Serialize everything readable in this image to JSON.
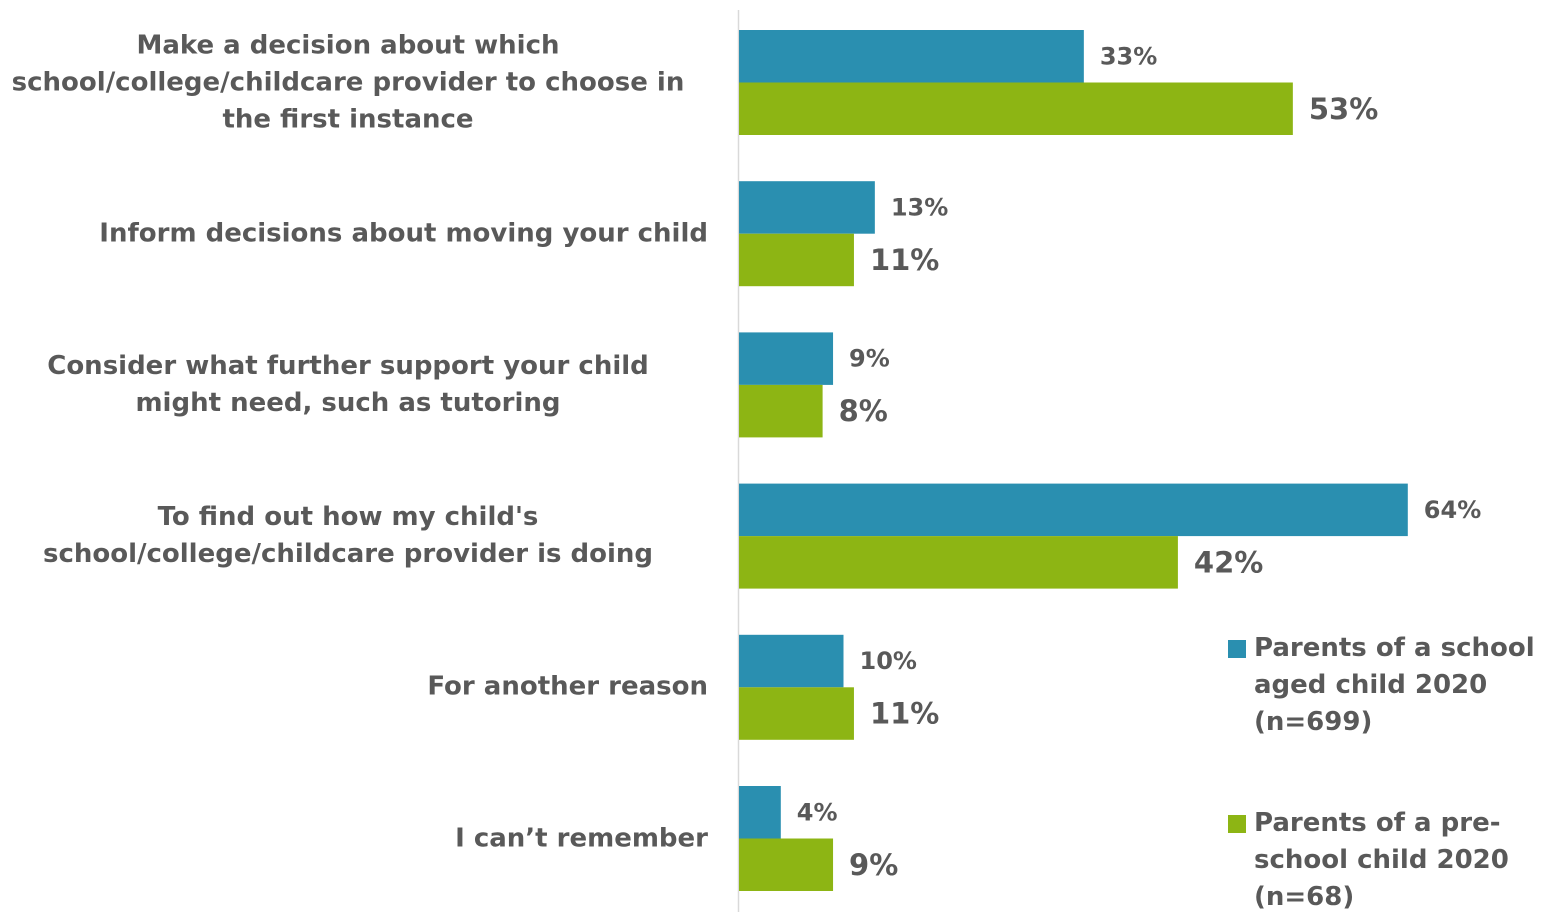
{
  "chart_data": {
    "type": "bar",
    "orientation": "horizontal",
    "categories": [
      "Make a decision about which school/college/childcare provider to choose in the first instance",
      "Inform decisions about moving your child",
      "Consider what further support your child might need, such as tutoring",
      "To find out how my child's school/college/childcare provider is doing",
      "For another reason",
      "I can’t remember"
    ],
    "series": [
      {
        "name": "Parents of a school aged child 2020 (n=699)",
        "values": [
          33,
          13,
          9,
          64,
          10,
          4
        ],
        "color": "#2a8fb0"
      },
      {
        "name": "Parents of a pre-school child 2020 (n=68)",
        "values": [
          53,
          11,
          8,
          42,
          11,
          9
        ],
        "color": "#8db514"
      }
    ],
    "value_labels": [
      [
        "33%",
        "13%",
        "9%",
        "64%",
        "10%",
        "4%"
      ],
      [
        "53%",
        "11%",
        "8%",
        "42%",
        "11%",
        "9%"
      ]
    ],
    "legend_lines": [
      [
        "Parents of a school",
        "aged child 2020",
        "(n=699)"
      ],
      [
        "Parents of a pre-",
        "school child 2020",
        "(n=68)"
      ]
    ],
    "legend_position": "bottom-right",
    "xlim": [
      0,
      100
    ],
    "grid": false,
    "title": "",
    "xlabel": "",
    "ylabel": ""
  }
}
